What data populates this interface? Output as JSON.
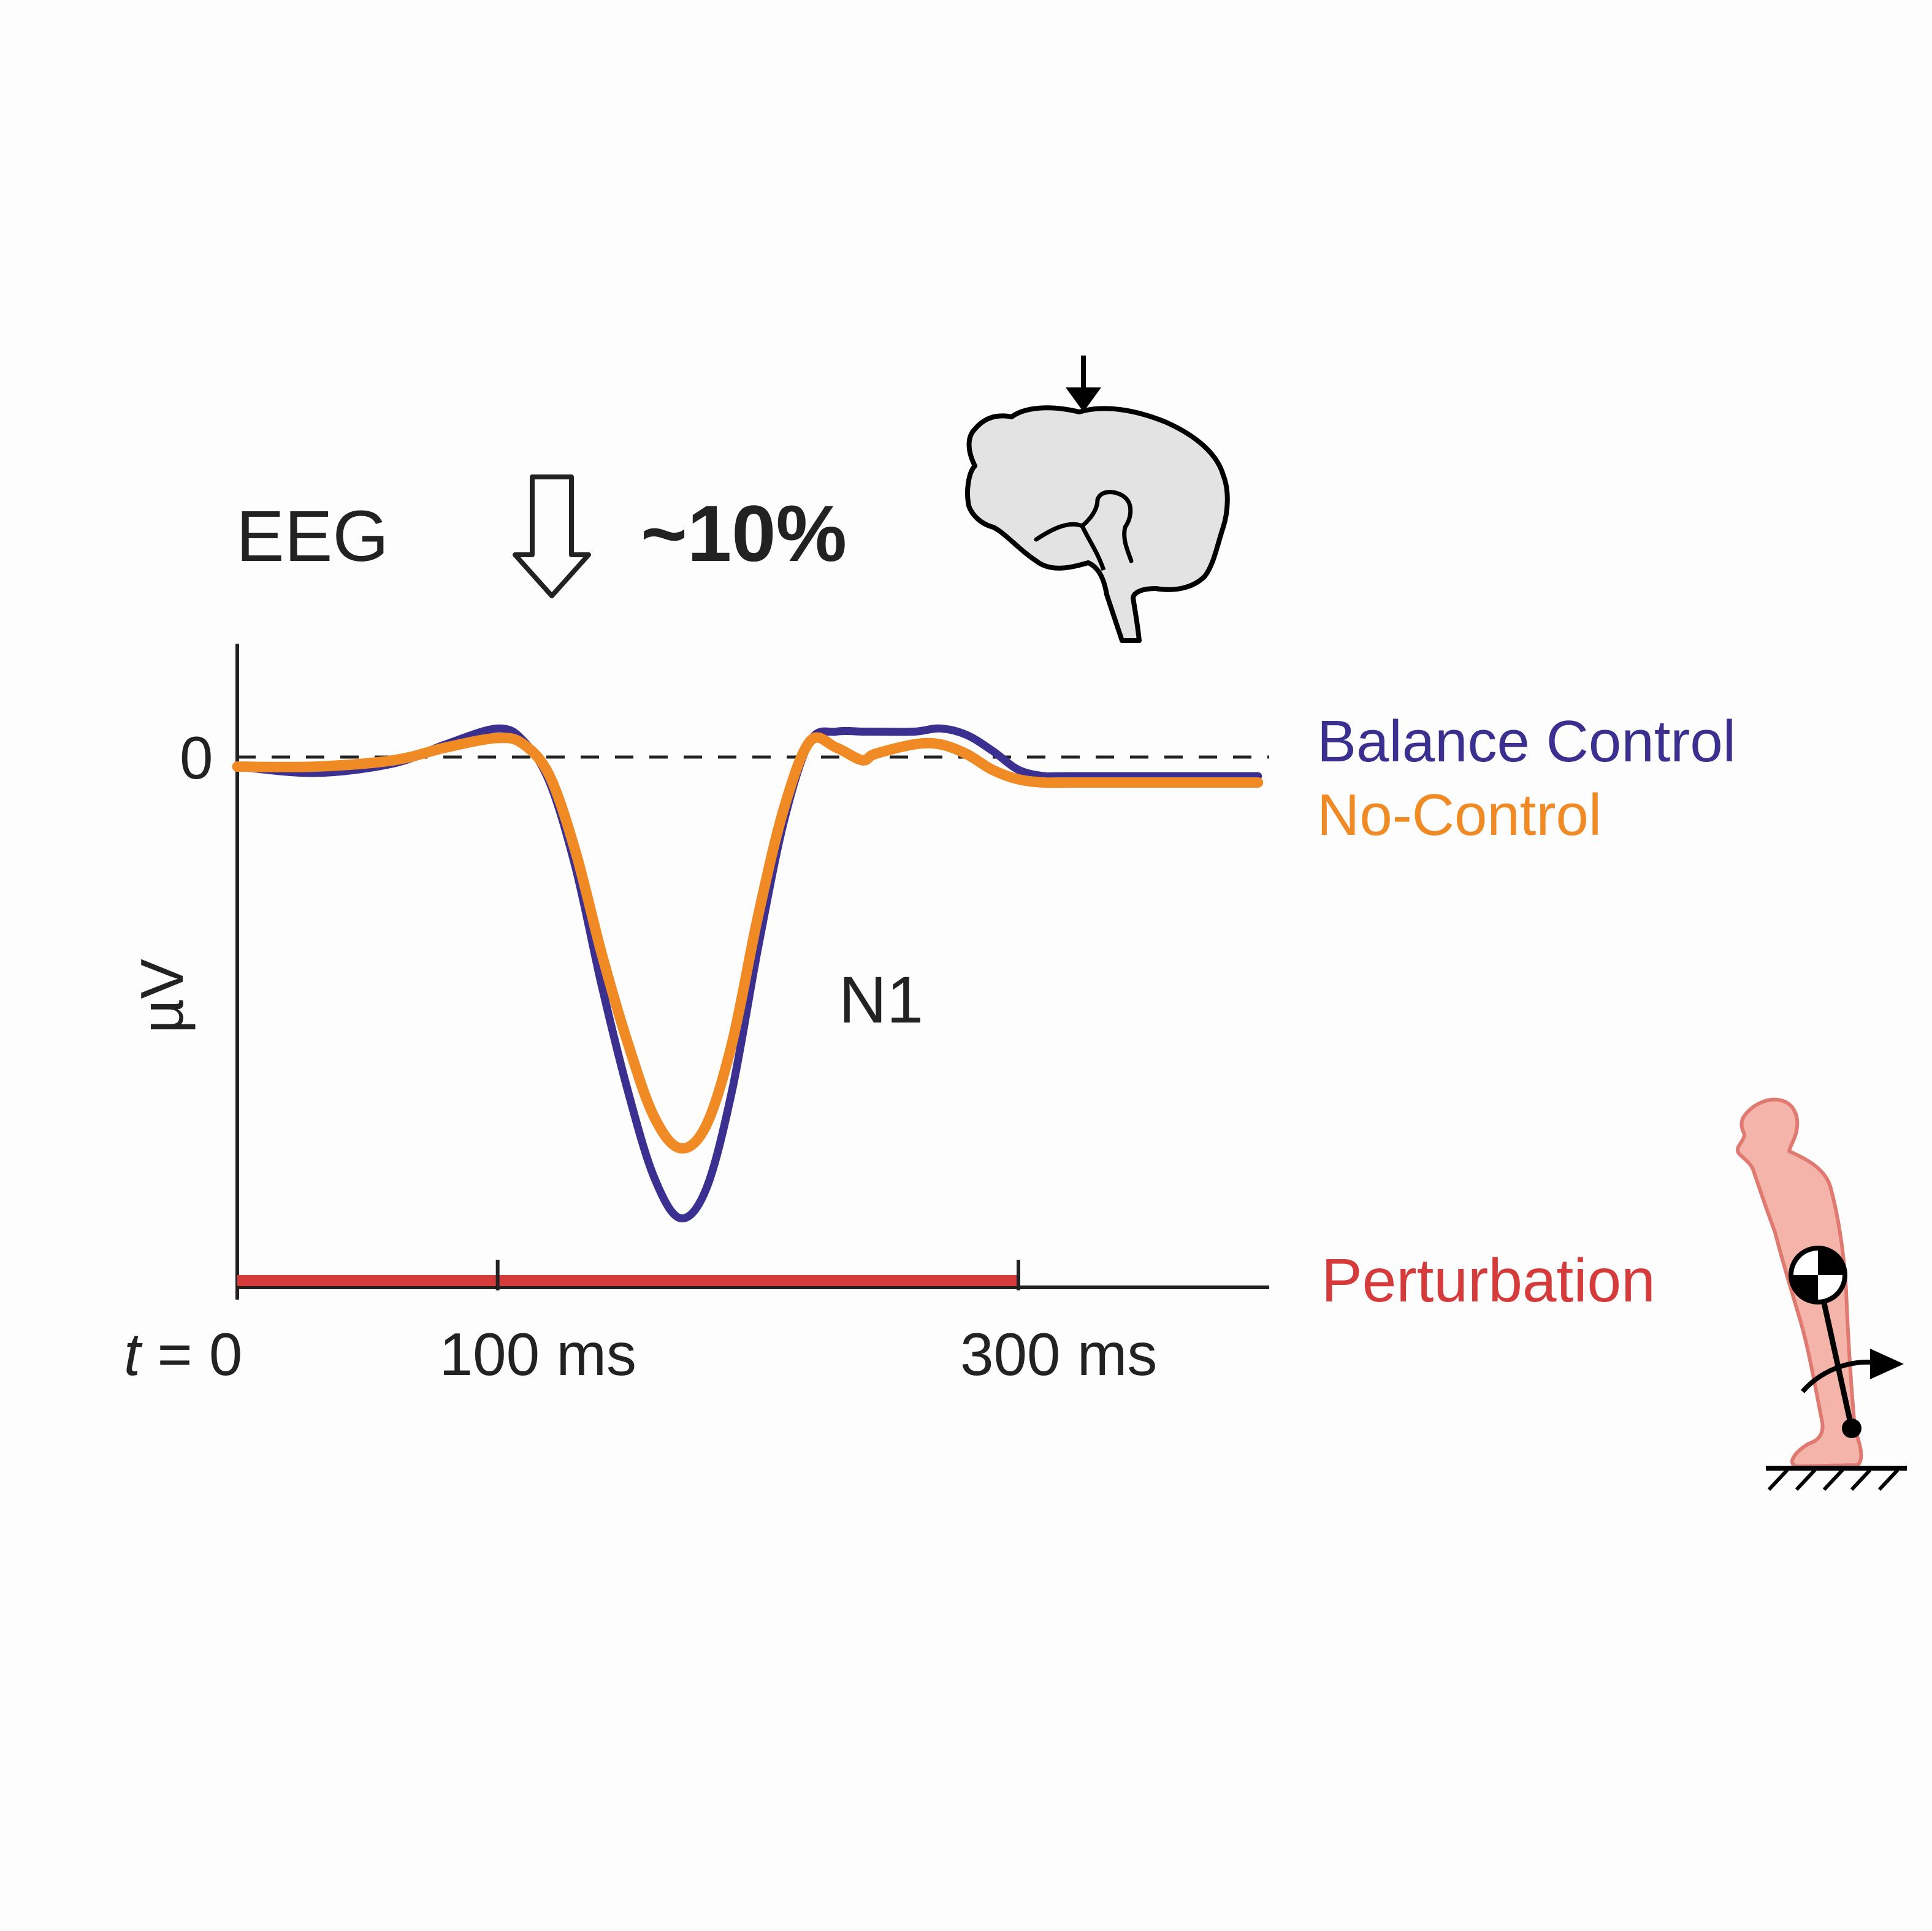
{
  "header": {
    "title": "EEG",
    "reduction": "~10%"
  },
  "legend": {
    "balance_control": "Balance Control",
    "no_control": "No-Control",
    "perturbation": "Perturbation"
  },
  "annotations": {
    "peak_label": "N1"
  },
  "colors": {
    "balance_control": "#3b2f8f",
    "no_control": "#f08a24",
    "perturbation": "#d63b3b",
    "axis": "#222222",
    "brain_fill": "#e3e3e3",
    "figure_fill": "#f4b4aa",
    "figure_stroke": "#e07a70"
  },
  "icons": [
    "down-arrow-icon",
    "brain-icon",
    "standing-person-icon"
  ],
  "chart_data": {
    "type": "line",
    "xlabel": "",
    "ylabel": "µV",
    "ytick_labels": [
      "0"
    ],
    "xtick_labels": [
      {
        "t": 0,
        "label": "t = 0"
      },
      {
        "t": 100,
        "label": "100 ms"
      },
      {
        "t": 300,
        "label": "300 ms"
      }
    ],
    "xlim": [
      0,
      392
    ],
    "ylim": [
      -16,
      3
    ],
    "zero_line": "dashed",
    "perturbation_window": [
      0,
      300
    ],
    "series": [
      {
        "name": "Balance Control",
        "color": "#3b2f8f",
        "x": [
          0,
          30,
          60,
          80,
          100,
          110,
          120,
          130,
          140,
          150,
          160,
          170,
          180,
          190,
          200,
          210,
          220,
          230,
          240,
          245,
          260,
          270,
          280,
          290,
          300,
          310,
          320,
          392
        ],
        "y": [
          -0.3,
          -0.5,
          -0.2,
          0.4,
          0.9,
          0.5,
          -0.8,
          -3.5,
          -7.2,
          -10.5,
          -13.2,
          -14.5,
          -13.6,
          -10.5,
          -6.0,
          -2.0,
          0.5,
          0.8,
          0.8,
          0.8,
          0.8,
          0.9,
          0.7,
          0.2,
          -0.4,
          -0.6,
          -0.6,
          -0.6
        ]
      },
      {
        "name": "No-Control",
        "color": "#f08a24",
        "x": [
          0,
          30,
          60,
          80,
          100,
          110,
          120,
          130,
          140,
          150,
          160,
          170,
          180,
          190,
          200,
          210,
          220,
          230,
          240,
          245,
          260,
          270,
          280,
          290,
          300,
          310,
          320,
          392
        ],
        "y": [
          -0.3,
          -0.3,
          -0.1,
          0.3,
          0.6,
          0.4,
          -0.6,
          -3.0,
          -6.2,
          -9.0,
          -11.3,
          -12.3,
          -11.6,
          -9.0,
          -5.0,
          -1.6,
          0.5,
          0.3,
          -0.1,
          0.1,
          0.4,
          0.4,
          0.1,
          -0.4,
          -0.7,
          -0.8,
          -0.8,
          -0.8
        ]
      }
    ],
    "legend": "right"
  }
}
